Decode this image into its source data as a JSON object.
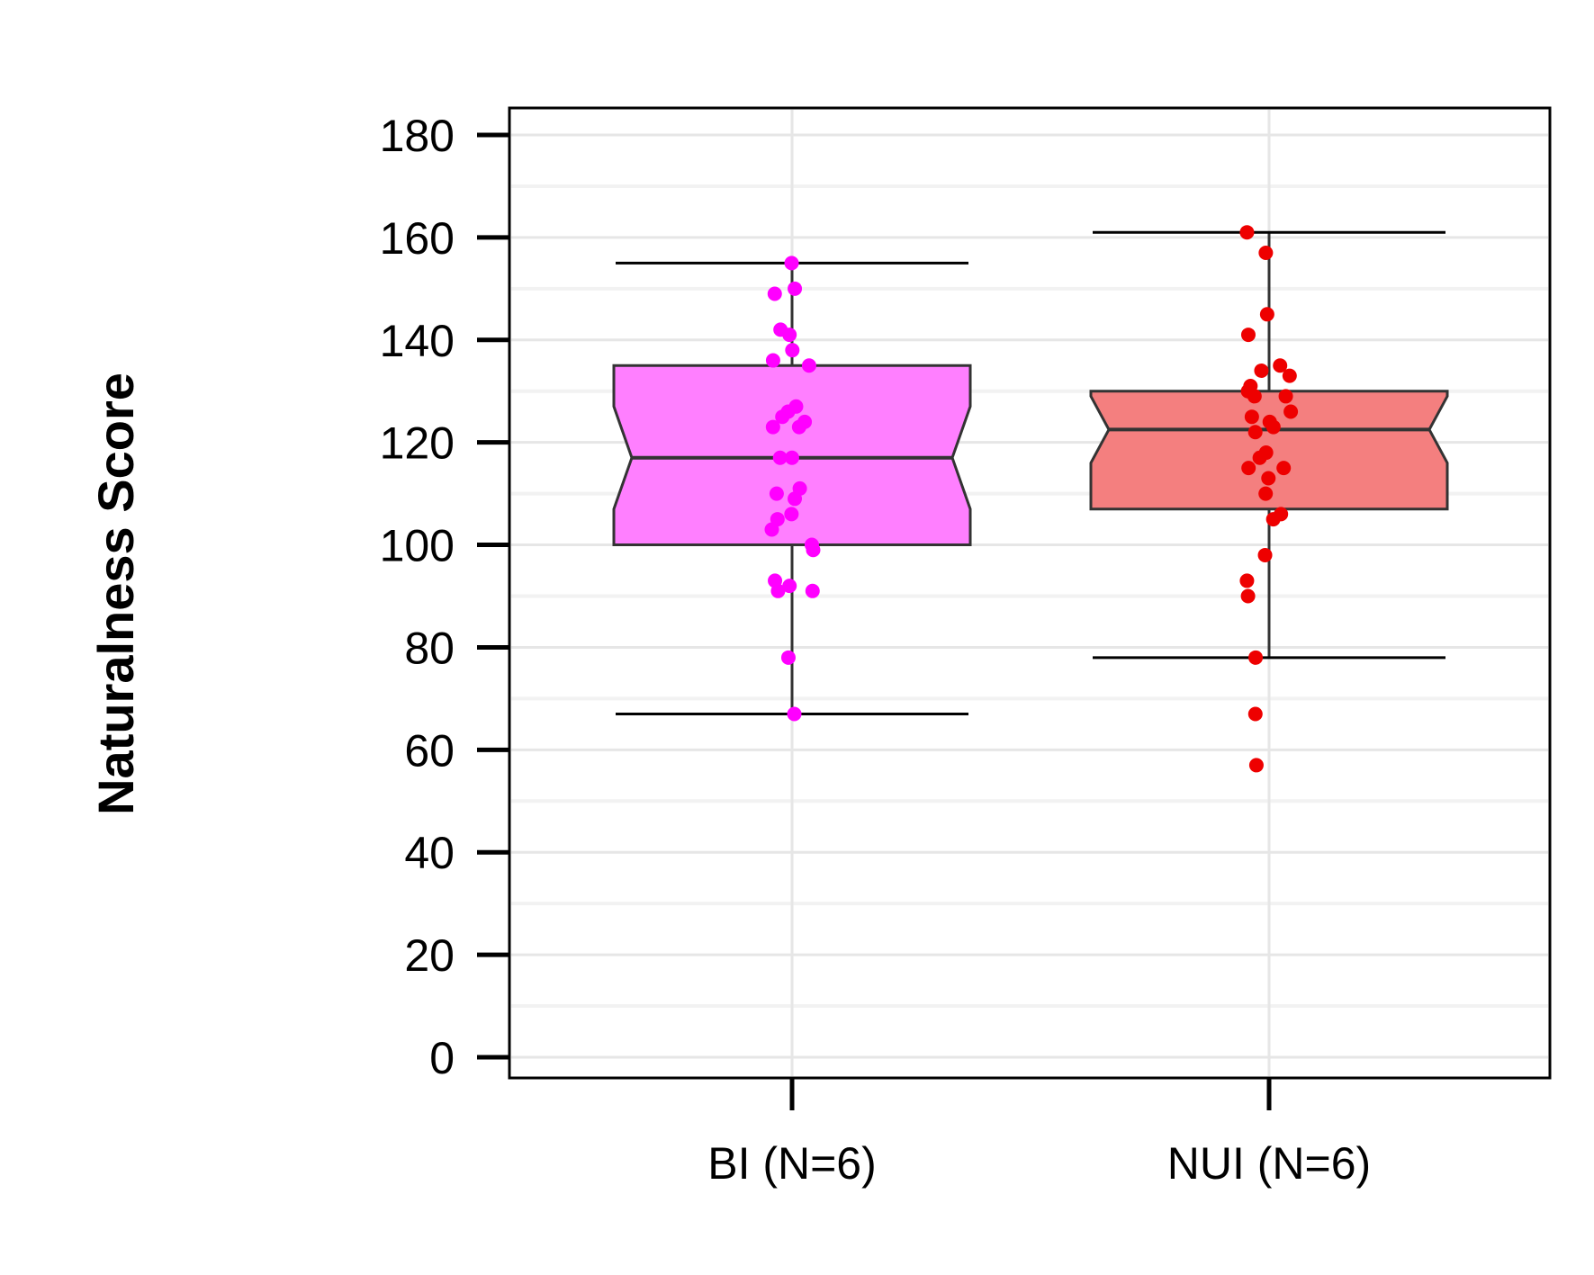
{
  "chart_data": {
    "type": "boxplot",
    "title": "",
    "xlabel": "",
    "ylabel": "Naturalness Score",
    "ylim": [
      0,
      180
    ],
    "yticks": [
      0,
      20,
      40,
      60,
      80,
      100,
      120,
      140,
      160,
      180
    ],
    "grid": true,
    "notched": true,
    "categories": [
      "BI (N=6)",
      "NUI (N=6)"
    ],
    "boxes": [
      {
        "category": "BI (N=6)",
        "color": "#ff7fff",
        "point_color": "#ff00ff",
        "whisker_low": 67,
        "q1": 100,
        "median": 117,
        "q3": 135,
        "whisker_high": 155,
        "notch_low": 107,
        "notch_high": 127,
        "points": [
          155,
          150,
          149,
          142,
          141,
          138,
          136,
          135,
          127,
          126,
          125,
          124,
          123,
          123,
          117,
          117,
          111,
          110,
          109,
          106,
          105,
          103,
          100,
          99,
          93,
          92,
          91,
          91,
          78,
          67
        ]
      },
      {
        "category": "NUI (N=6)",
        "color": "#f47f7f",
        "point_color": "#ee0000",
        "whisker_low": 78,
        "q1": 107,
        "median": 122.5,
        "q3": 130,
        "whisker_high": 161,
        "notch_low": 116,
        "notch_high": 129,
        "points": [
          161,
          157,
          145,
          141,
          135,
          134,
          133,
          131,
          130,
          129,
          129,
          126,
          125,
          124,
          123,
          122,
          118,
          117,
          115,
          115,
          113,
          110,
          106,
          105,
          98,
          93,
          90,
          78,
          67,
          57
        ]
      }
    ]
  }
}
